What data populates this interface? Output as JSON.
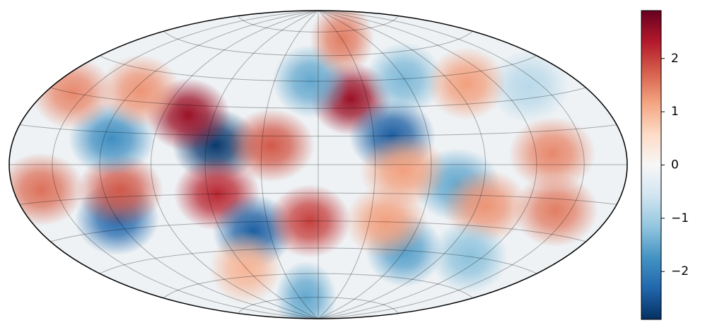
{
  "chart_data": {
    "type": "map",
    "projection": "hammer",
    "grid": true,
    "colormap": [
      "#053061",
      "#2166ac",
      "#4393c3",
      "#92c5de",
      "#d1e5f0",
      "#f7f7f7",
      "#fddbc7",
      "#f4a582",
      "#d6604d",
      "#b2182b",
      "#67001f"
    ],
    "clim": [
      -2.9,
      2.9
    ],
    "cticks": [
      {
        "value": -2,
        "label": "−2"
      },
      {
        "value": -1,
        "label": "−1"
      },
      0,
      1,
      2
    ],
    "spots": [
      {
        "lon": 20,
        "lat": 35,
        "value": 2.5
      },
      {
        "lon": -55,
        "lat": 10,
        "value": -2.8
      },
      {
        "lon": -75,
        "lat": 25,
        "value": 2.5
      },
      {
        "lon": 40,
        "lat": 15,
        "value": -2.4
      },
      {
        "lon": -55,
        "lat": -15,
        "value": 2.2
      },
      {
        "lon": -40,
        "lat": -35,
        "value": -2.4
      },
      {
        "lon": -5,
        "lat": -30,
        "value": 2.0
      },
      {
        "lon": -120,
        "lat": -25,
        "value": -2.3
      },
      {
        "lon": -110,
        "lat": -12,
        "value": 1.8
      },
      {
        "lon": -160,
        "lat": -10,
        "value": 1.6
      },
      {
        "lon": -115,
        "lat": 12,
        "value": -1.8
      },
      {
        "lon": -115,
        "lat": 35,
        "value": 1.3
      },
      {
        "lon": -160,
        "lat": 30,
        "value": 1.4
      },
      {
        "lon": -25,
        "lat": 10,
        "value": 1.8
      },
      {
        "lon": -5,
        "lat": 45,
        "value": -1.5
      },
      {
        "lon": 30,
        "lat": 70,
        "value": 1.5
      },
      {
        "lon": 60,
        "lat": 45,
        "value": -1.3
      },
      {
        "lon": 75,
        "lat": -10,
        "value": -1.5
      },
      {
        "lon": 45,
        "lat": -3,
        "value": 1.2
      },
      {
        "lon": 130,
        "lat": 5,
        "value": 1.4
      },
      {
        "lon": 140,
        "lat": -20,
        "value": 1.5
      },
      {
        "lon": 60,
        "lat": -45,
        "value": -1.6
      },
      {
        "lon": 140,
        "lat": 35,
        "value": -0.8
      },
      {
        "lon": 100,
        "lat": 40,
        "value": 1.2
      },
      {
        "lon": 95,
        "lat": -20,
        "value": 1.3
      },
      {
        "lon": 40,
        "lat": -30,
        "value": 1.2
      },
      {
        "lon": 110,
        "lat": -45,
        "value": -1.2
      },
      {
        "lon": -60,
        "lat": -55,
        "value": 1.0
      },
      {
        "lon": -20,
        "lat": -75,
        "value": -1.5
      }
    ]
  }
}
